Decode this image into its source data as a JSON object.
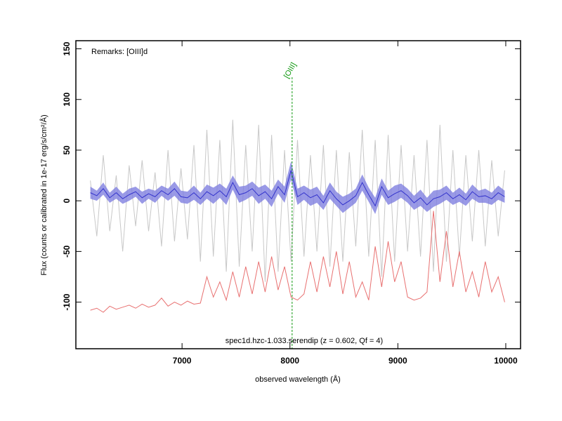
{
  "chart_data": {
    "type": "line",
    "remarks": "Remarks: [OIII]d",
    "caption": "spec1d.hzc-1.033.serendip (z = 0.602, Qf = 4)",
    "xlabel": "observed wavelength (Å)",
    "ylabel": "Flux (counts or calibrated in 1e-17 erg/s/cm²/Å)",
    "x": [
      6150,
      6210,
      6270,
      6330,
      6390,
      6450,
      6510,
      6570,
      6630,
      6690,
      6750,
      6810,
      6870,
      6930,
      6990,
      7050,
      7110,
      7170,
      7230,
      7290,
      7350,
      7410,
      7470,
      7530,
      7590,
      7650,
      7710,
      7770,
      7830,
      7890,
      7950,
      8010,
      8070,
      8130,
      8190,
      8250,
      8310,
      8370,
      8430,
      8490,
      8550,
      8610,
      8670,
      8730,
      8790,
      8850,
      8910,
      8970,
      9030,
      9090,
      9150,
      9210,
      9270,
      9330,
      9390,
      9450,
      9510,
      9570,
      9630,
      9690,
      9750,
      9810,
      9870,
      9930,
      9990
    ],
    "series": [
      {
        "color": "#c8c8c8",
        "values": [
          20,
          -35,
          45,
          -30,
          25,
          -50,
          35,
          -25,
          40,
          -30,
          28,
          -45,
          50,
          -40,
          32,
          -38,
          55,
          -60,
          70,
          -55,
          60,
          -70,
          80,
          -65,
          55,
          -50,
          75,
          -80,
          65,
          -70,
          50,
          -60,
          60,
          -55,
          45,
          -50,
          55,
          -65,
          50,
          -60,
          48,
          -45,
          70,
          -55,
          60,
          -75,
          65,
          -60,
          55,
          -50,
          45,
          -55,
          60,
          -70,
          75,
          -60,
          50,
          -55,
          45,
          -40,
          50,
          -45,
          40,
          -35,
          30
        ]
      },
      {
        "color": "#e87070",
        "values": [
          -108,
          -106,
          -110,
          -104,
          -107,
          -105,
          -103,
          -106,
          -102,
          -105,
          -103,
          -96,
          -104,
          -100,
          -103,
          -99,
          -102,
          -101,
          -75,
          -95,
          -80,
          -98,
          -70,
          -95,
          -65,
          -92,
          -60,
          -90,
          -55,
          -88,
          -65,
          -95,
          -98,
          -92,
          -60,
          -90,
          -55,
          -85,
          -50,
          -92,
          -60,
          -95,
          -80,
          -98,
          -45,
          -85,
          -40,
          -80,
          -60,
          -95,
          -98,
          -96,
          -90,
          -10,
          -80,
          -30,
          -85,
          -50,
          -90,
          -70,
          -95,
          -60,
          -90,
          -75,
          -100
        ]
      },
      {
        "color": "#3333cc",
        "band_color": "#8080e0",
        "values": [
          8,
          5,
          12,
          3,
          8,
          2,
          6,
          9,
          3,
          7,
          4,
          10,
          6,
          12,
          4,
          3,
          8,
          2,
          9,
          5,
          10,
          4,
          18,
          6,
          8,
          12,
          5,
          9,
          2,
          14,
          6,
          30,
          4,
          8,
          3,
          6,
          -2,
          10,
          2,
          -4,
          0,
          5,
          18,
          6,
          -5,
          14,
          3,
          7,
          10,
          5,
          -2,
          3,
          -4,
          2,
          4,
          8,
          2,
          6,
          1,
          9,
          4,
          5,
          2,
          8,
          4
        ],
        "errors": [
          6,
          5,
          6,
          5,
          6,
          5,
          6,
          5,
          6,
          5,
          6,
          5,
          6,
          7,
          6,
          6,
          7,
          6,
          7,
          8,
          7,
          8,
          7,
          8,
          7,
          7,
          8,
          7,
          8,
          7,
          8,
          9,
          8,
          7,
          8,
          8,
          7,
          8,
          7,
          8,
          7,
          7,
          8,
          7,
          8,
          8,
          7,
          8,
          7,
          7,
          7,
          8,
          7,
          8,
          7,
          7,
          6,
          7,
          6,
          7,
          6,
          7,
          6,
          7,
          6
        ]
      }
    ],
    "lines": [
      {
        "x": 8020,
        "label": "[OIII]",
        "color": "#119911"
      }
    ],
    "xlim": [
      6016,
      10137
    ],
    "ylim": [
      -146,
      158
    ],
    "xticks": [
      7000,
      8000,
      9000,
      10000
    ],
    "yticks": [
      -100,
      -50,
      0,
      50,
      100,
      150
    ]
  }
}
